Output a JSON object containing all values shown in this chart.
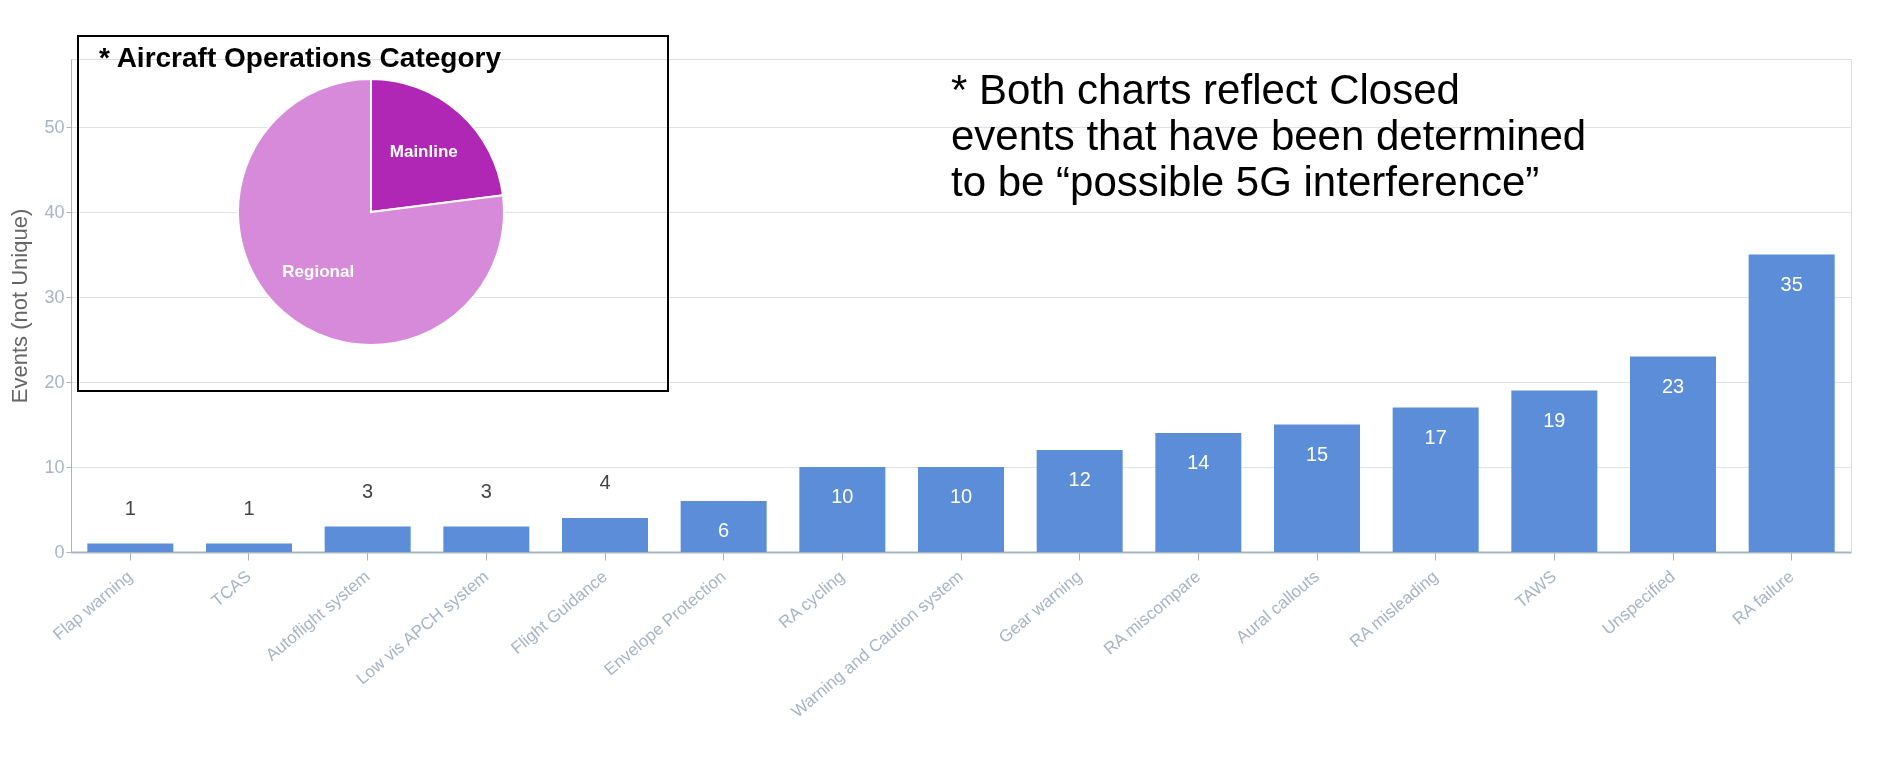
{
  "chart_data": [
    {
      "type": "bar",
      "ylabel": "Events (not Unique)",
      "categories": [
        "Flap warning",
        "TCAS",
        "Autoflight system",
        "Low vis APCH system",
        "Flight Guidance",
        "Envelope Protection",
        "RA cycling",
        "Warning and Caution system",
        "Gear warning",
        "RA miscompare",
        "Aural callouts",
        "RA misleading",
        "TAWS",
        "Unspecified",
        "RA failure"
      ],
      "values": [
        1,
        1,
        3,
        3,
        4,
        6,
        10,
        10,
        12,
        14,
        15,
        17,
        19,
        23,
        35
      ],
      "color": "#5b8dd9",
      "ylim": [
        0,
        58
      ],
      "yticks": [
        0,
        10,
        20,
        30,
        40,
        50
      ],
      "grid": "y",
      "data_labels": true,
      "annotations": [
        "* Both charts reflect Closed events that have been determined to be “possible 5G interference”"
      ]
    },
    {
      "type": "pie",
      "title": "* Aircraft Operations Category",
      "categories": [
        "Mainline",
        "Regional"
      ],
      "values": [
        23,
        77
      ],
      "colors": [
        "#b026b5",
        "#d68ad9"
      ]
    }
  ]
}
